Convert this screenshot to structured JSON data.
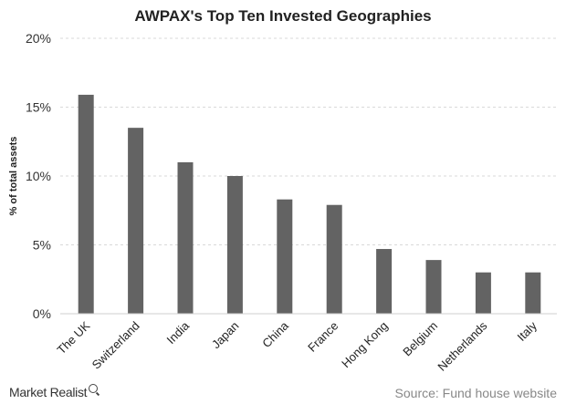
{
  "chart_data": {
    "type": "bar",
    "title": "AWPAX's Top Ten Invested Geographies",
    "xlabel": "",
    "ylabel": "% of total assets",
    "categories": [
      "The UK",
      "Switzerland",
      "India",
      "Japan",
      "China",
      "France",
      "Hong Kong",
      "Belgium",
      "Netherlands",
      "Italy"
    ],
    "values": [
      15.9,
      13.5,
      11.0,
      10.0,
      8.3,
      7.9,
      4.7,
      3.9,
      3.0,
      3.0
    ],
    "ylim": [
      0,
      20
    ],
    "yticks": [
      "0%",
      "5%",
      "10%",
      "15%",
      "20%"
    ],
    "ytick_values": [
      0,
      5,
      10,
      15,
      20
    ],
    "grid": true,
    "legend": "none",
    "bar_color": "#636363"
  },
  "footer": {
    "brand": "Market Realist",
    "brand_icon": "magnifier-icon",
    "source": "Source: Fund house website"
  }
}
